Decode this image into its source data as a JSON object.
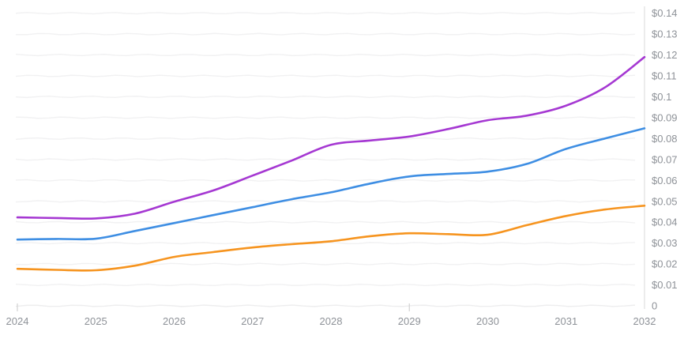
{
  "chart_data": {
    "type": "line",
    "title": "",
    "xlabel": "",
    "ylabel": "",
    "legend": "none",
    "grid": "horizontal-sketchy",
    "xlim": [
      2024,
      2032
    ],
    "ylim": [
      0,
      0.145
    ],
    "x": [
      2024,
      2024.5,
      2025,
      2025.5,
      2026,
      2026.5,
      2027,
      2027.5,
      2028,
      2028.5,
      2029,
      2029.5,
      2030,
      2030.5,
      2031,
      2031.5,
      2032
    ],
    "series": [
      {
        "name": "purple",
        "color": "#a538d2",
        "values": [
          0.0423,
          0.042,
          0.0418,
          0.0441,
          0.0498,
          0.0552,
          0.0623,
          0.0695,
          0.077,
          0.0791,
          0.081,
          0.0846,
          0.0888,
          0.091,
          0.0958,
          0.1046,
          0.119
        ]
      },
      {
        "name": "blue",
        "color": "#3e8ee3",
        "values": [
          0.0317,
          0.032,
          0.0321,
          0.0358,
          0.0396,
          0.0434,
          0.0472,
          0.051,
          0.0543,
          0.0585,
          0.0619,
          0.0631,
          0.0642,
          0.0679,
          0.0751,
          0.0801,
          0.0849
        ]
      },
      {
        "name": "orange",
        "color": "#f6941f",
        "values": [
          0.0177,
          0.0172,
          0.017,
          0.0192,
          0.0234,
          0.0257,
          0.0279,
          0.0295,
          0.0309,
          0.0333,
          0.0347,
          0.0343,
          0.034,
          0.0386,
          0.043,
          0.0461,
          0.0479
        ]
      }
    ],
    "x_ticks": {
      "years": [
        2024,
        2025,
        2026,
        2027,
        2028,
        2029,
        2030,
        2031,
        2032
      ],
      "labels": [
        "2024",
        "2025",
        "2026",
        "2027",
        "2028",
        "2029",
        "2030",
        "2031",
        "2032"
      ],
      "tick_mark_years": [
        2024,
        2029
      ]
    },
    "y_ticks": {
      "values": [
        0,
        0.01,
        0.02,
        0.03,
        0.04,
        0.05,
        0.06,
        0.07,
        0.08,
        0.09,
        0.1,
        0.11,
        0.12,
        0.13,
        0.14
      ],
      "labels": [
        "0",
        "$0.01",
        "$0.02",
        "$0.03",
        "$0.04",
        "$0.05",
        "$0.06",
        "$0.07",
        "$0.08",
        "$0.09",
        "$0.1",
        "$0.11",
        "$0.12",
        "$0.13",
        "$0.14"
      ],
      "position": "right"
    }
  },
  "styles": {
    "background": "#ffffff",
    "axis_text_color": "#8e9298",
    "grid_color": "#f1f1f2",
    "baseline_color": "#ededee",
    "axis_line_color": "#ececec",
    "tick_color": "#d2d2d2",
    "axis_font_size": 13,
    "line_width": 2.6
  }
}
